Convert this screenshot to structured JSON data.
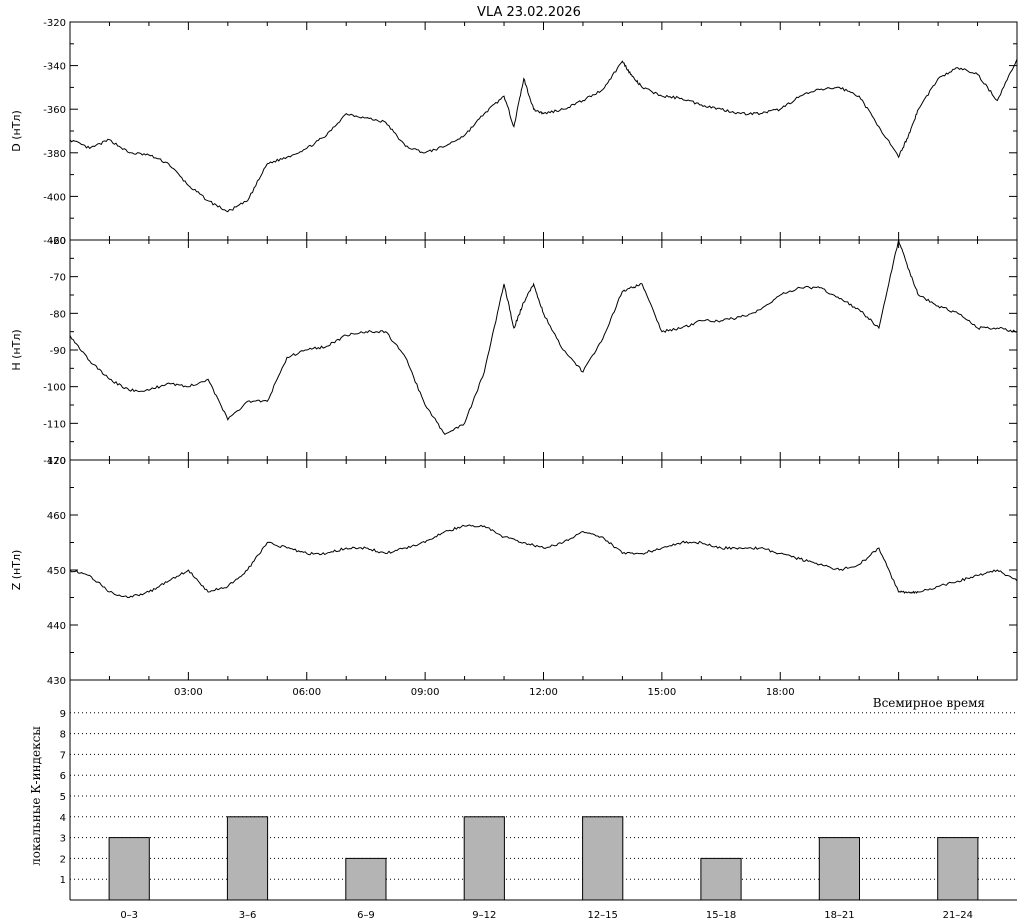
{
  "header": {
    "title": "VLA   23.02.2026"
  },
  "chart_data": [
    {
      "type": "line",
      "ylabel": "D (нТл)",
      "ylim": [
        -420,
        -320
      ],
      "yticks": [
        -320,
        -340,
        -360,
        -380,
        -400,
        -420
      ],
      "x": [
        0,
        0.5,
        1,
        1.5,
        2,
        2.5,
        3,
        3.5,
        4,
        4.5,
        5,
        5.5,
        6,
        6.5,
        7,
        7.5,
        8,
        8.5,
        9,
        9.5,
        10,
        10.5,
        11,
        11.25,
        11.5,
        11.75,
        12,
        12.5,
        13,
        13.5,
        14,
        14.25,
        14.5,
        15,
        15.5,
        16,
        16.5,
        17,
        17.5,
        18,
        18.5,
        19,
        19.5,
        20,
        20.5,
        21,
        21.25,
        21.5,
        22,
        22.5,
        23,
        23.5,
        24
      ],
      "values": [
        -374,
        -378,
        -374,
        -380,
        -381,
        -385,
        -395,
        -402,
        -407,
        -402,
        -385,
        -382,
        -378,
        -372,
        -362,
        -364,
        -366,
        -377,
        -380,
        -377,
        -372,
        -362,
        -354,
        -368,
        -346,
        -360,
        -362,
        -360,
        -356,
        -351,
        -338,
        -345,
        -350,
        -354,
        -355,
        -358,
        -360,
        -362,
        -362,
        -360,
        -354,
        -351,
        -350,
        -354,
        -368,
        -382,
        -372,
        -360,
        -346,
        -341,
        -344,
        -356,
        -337
      ]
    },
    {
      "type": "line",
      "ylabel": "H (нТл)",
      "ylim": [
        -120,
        -60
      ],
      "yticks": [
        -60,
        -70,
        -80,
        -90,
        -100,
        -110,
        -120
      ],
      "x": [
        0,
        0.5,
        1,
        1.5,
        2,
        2.5,
        3,
        3.5,
        4,
        4.5,
        5,
        5.5,
        6,
        6.5,
        7,
        7.5,
        8,
        8.5,
        9,
        9.5,
        10,
        10.5,
        11,
        11.25,
        11.5,
        11.75,
        12,
        12.5,
        13,
        13.5,
        14,
        14.25,
        14.5,
        15,
        15.5,
        16,
        16.5,
        17,
        17.5,
        18,
        18.5,
        19,
        19.5,
        20,
        20.5,
        21,
        21.25,
        21.5,
        22,
        22.5,
        23,
        23.5,
        24
      ],
      "values": [
        -86,
        -93,
        -98,
        -101,
        -101,
        -99,
        -100,
        -98,
        -109,
        -104,
        -104,
        -92,
        -90,
        -89,
        -86,
        -85,
        -85,
        -92,
        -105,
        -113,
        -110,
        -96,
        -72,
        -84,
        -77,
        -72,
        -80,
        -90,
        -96,
        -87,
        -74,
        -73,
        -72,
        -85,
        -84,
        -82,
        -82,
        -81,
        -79,
        -75,
        -73,
        -73,
        -76,
        -79,
        -84,
        -60,
        -68,
        -75,
        -78,
        -80,
        -84,
        -84,
        -85
      ]
    },
    {
      "type": "line",
      "ylabel": "Z (нТл)",
      "ylim": [
        430,
        470
      ],
      "yticks": [
        470,
        460,
        450,
        440,
        430
      ],
      "x": [
        0,
        0.5,
        1,
        1.5,
        2,
        2.5,
        3,
        3.5,
        4,
        4.5,
        5,
        5.5,
        6,
        6.5,
        7,
        7.5,
        8,
        8.5,
        9,
        9.5,
        10,
        10.5,
        11,
        11.5,
        12,
        12.5,
        13,
        13.5,
        14,
        14.5,
        15,
        15.5,
        16,
        16.5,
        17,
        17.5,
        18,
        18.5,
        19,
        19.5,
        20,
        20.5,
        21,
        21.25,
        21.5,
        22,
        22.5,
        23,
        23.5,
        24
      ],
      "values": [
        450,
        449,
        446,
        445,
        446,
        448,
        450,
        446,
        447,
        450,
        455,
        454,
        453,
        453,
        454,
        454,
        453,
        454,
        455,
        457,
        458,
        458,
        456,
        455,
        454,
        455,
        457,
        456,
        453,
        453,
        454,
        455,
        455,
        454,
        454,
        454,
        453,
        452,
        451,
        450,
        451,
        454,
        446,
        446,
        446,
        447,
        448,
        449,
        450,
        448
      ]
    },
    {
      "type": "bar",
      "ylabel": "локальные К-индексы",
      "ylim": [
        0,
        10
      ],
      "yticks": [
        1,
        2,
        3,
        4,
        5,
        6,
        7,
        8,
        9
      ],
      "categories": [
        "0–3",
        "3–6",
        "6–9",
        "9–12",
        "12–15",
        "15–18",
        "18–21",
        "21–24"
      ],
      "values": [
        3,
        4,
        2,
        4,
        4,
        2,
        3,
        3
      ]
    }
  ],
  "time_axis": {
    "ticks": [
      "03:00",
      "06:00",
      "09:00",
      "12:00",
      "15:00",
      "18:00"
    ],
    "tick_hours": [
      3,
      6,
      9,
      12,
      15,
      18
    ],
    "label": "Всемирное время"
  },
  "colors": {
    "line": "#000000",
    "bar_fill": "#b4b4b4",
    "bar_stroke": "#000000",
    "background": "#ffffff"
  }
}
